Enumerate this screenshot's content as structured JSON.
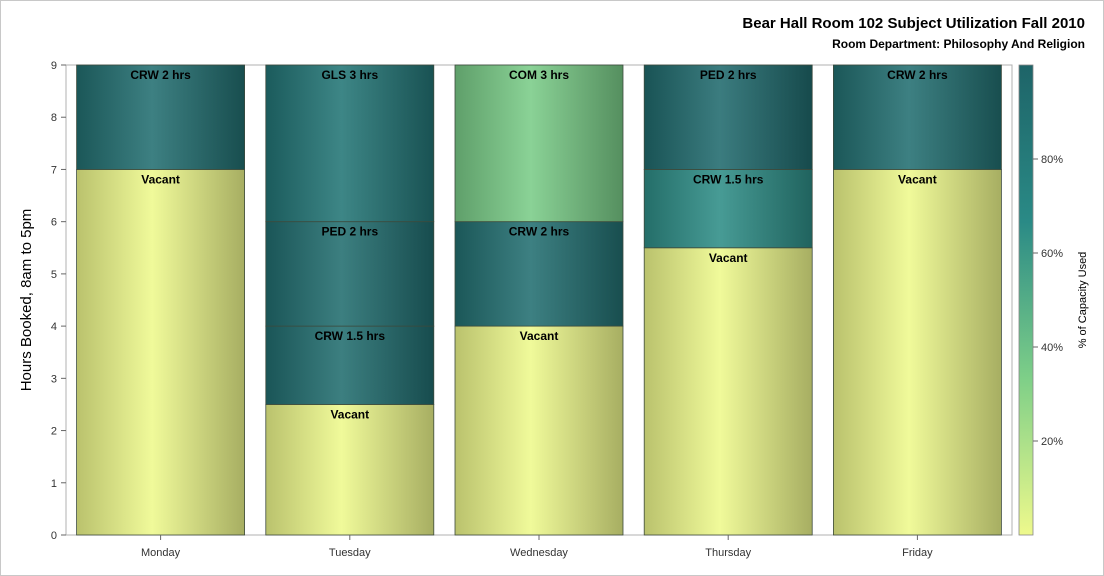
{
  "chart_data": {
    "type": "bar",
    "stacked": true,
    "title": "Bear Hall Room 102 Subject Utilization Fall 2010",
    "subtitle": "Room Department:  Philosophy And Religion",
    "ylabel": "Hours Booked, 8am to 5pm",
    "xlabel": "",
    "ylim": [
      0,
      9
    ],
    "yticks": [
      0,
      1,
      2,
      3,
      4,
      5,
      6,
      7,
      8,
      9
    ],
    "categories": [
      "Monday",
      "Tuesday",
      "Wednesday",
      "Thursday",
      "Friday"
    ],
    "bars": [
      {
        "day": "Monday",
        "segments": [
          {
            "label": "Vacant",
            "hours": 7,
            "pct": 0
          },
          {
            "label": "CRW 2 hrs",
            "hours": 2,
            "pct": 90
          }
        ]
      },
      {
        "day": "Tuesday",
        "segments": [
          {
            "label": "Vacant",
            "hours": 2.5,
            "pct": 0
          },
          {
            "label": "CRW 1.5 hrs",
            "hours": 1.5,
            "pct": 92
          },
          {
            "label": "PED 2 hrs",
            "hours": 2,
            "pct": 92
          },
          {
            "label": "GLS 3 hrs",
            "hours": 3,
            "pct": 85
          }
        ]
      },
      {
        "day": "Wednesday",
        "segments": [
          {
            "label": "Vacant",
            "hours": 4,
            "pct": 0
          },
          {
            "label": "CRW 2 hrs",
            "hours": 2,
            "pct": 90
          },
          {
            "label": "COM 3 hrs",
            "hours": 3,
            "pct": 35
          }
        ]
      },
      {
        "day": "Thursday",
        "segments": [
          {
            "label": "Vacant",
            "hours": 5.5,
            "pct": 0
          },
          {
            "label": "CRW 1.5 hrs",
            "hours": 1.5,
            "pct": 65
          },
          {
            "label": "PED 2 hrs",
            "hours": 2,
            "pct": 95
          }
        ]
      },
      {
        "day": "Friday",
        "segments": [
          {
            "label": "Vacant",
            "hours": 7,
            "pct": 0
          },
          {
            "label": "CRW 2 hrs",
            "hours": 2,
            "pct": 90
          }
        ]
      }
    ],
    "colorbar": {
      "label": "% of Capacity Used",
      "range": [
        0,
        100
      ],
      "ticks": [
        {
          "value": 20,
          "label": "20%"
        },
        {
          "value": 40,
          "label": "40%"
        },
        {
          "value": 60,
          "label": "60%"
        },
        {
          "value": 80,
          "label": "80%"
        }
      ],
      "colors": [
        "#eef98c",
        "#7ecf88",
        "#2a8a86",
        "#1e6468"
      ]
    }
  }
}
